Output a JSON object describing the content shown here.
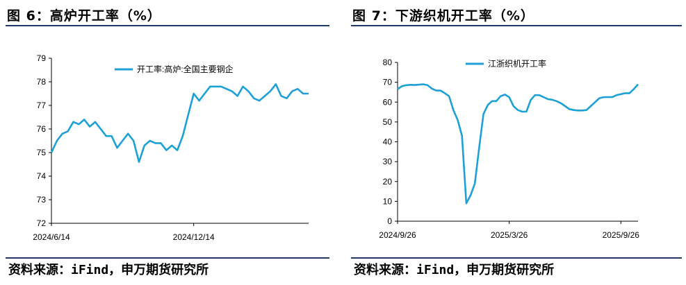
{
  "left": {
    "title": "图 6：高炉开工率（%）",
    "source": "资料来源：iFind，申万期货研究所"
  },
  "right": {
    "title": "图 7：下游织机开工率（%）",
    "source": "资料来源：iFind，申万期货研究所"
  },
  "chart_data": [
    {
      "type": "line",
      "xtick_labels": [
        "2024/6/14",
        "2024/12/14"
      ],
      "xtick_index": [
        0,
        26
      ],
      "ylim": [
        72,
        79
      ],
      "yticks": [
        72,
        73,
        74,
        75,
        76,
        77,
        78,
        79
      ],
      "series": [
        {
          "name": "开工率:高炉:全国主要钢企",
          "color": "#1ba1d6",
          "values": [
            75.0,
            75.5,
            75.8,
            75.9,
            76.3,
            76.2,
            76.4,
            76.1,
            76.3,
            76.0,
            75.7,
            75.7,
            75.2,
            75.5,
            75.8,
            75.5,
            74.6,
            75.3,
            75.5,
            75.4,
            75.4,
            75.1,
            75.3,
            75.1,
            75.7,
            76.6,
            77.5,
            77.2,
            77.5,
            77.8,
            77.8,
            77.8,
            77.7,
            77.6,
            77.4,
            77.8,
            77.6,
            77.3,
            77.2,
            77.4,
            77.6,
            77.9,
            77.4,
            77.3,
            77.6,
            77.7,
            77.5,
            77.5
          ]
        }
      ],
      "legend_position": "top-center",
      "grid": false
    },
    {
      "type": "line",
      "xtick_labels": [
        "2024/9/26",
        "2025/3/26",
        "2025/9/26"
      ],
      "xtick_index": [
        0,
        26,
        52
      ],
      "ylim": [
        0,
        80
      ],
      "yticks": [
        0,
        10,
        20,
        30,
        40,
        50,
        60,
        70,
        80
      ],
      "series": [
        {
          "name": "江浙织机开工率",
          "color": "#1ba1d6",
          "values": [
            66.5,
            68.0,
            68.5,
            68.7,
            68.6,
            68.8,
            69.0,
            68.5,
            66.8,
            65.8,
            65.8,
            64.5,
            63.0,
            56.0,
            51.0,
            43.0,
            9.0,
            13.0,
            19.0,
            37.0,
            54.0,
            58.5,
            60.5,
            60.5,
            63.0,
            63.8,
            62.5,
            58.0,
            56.0,
            55.2,
            55.2,
            61.0,
            63.5,
            63.5,
            62.5,
            61.5,
            61.2,
            60.5,
            59.5,
            58.0,
            56.5,
            56.0,
            55.8,
            55.8,
            56.0,
            58.0,
            60.0,
            62.0,
            62.5,
            62.5,
            62.5,
            63.5,
            64.0,
            64.5,
            64.5,
            66.5,
            69.0
          ]
        }
      ],
      "legend_position": "top-center",
      "grid": false
    }
  ]
}
